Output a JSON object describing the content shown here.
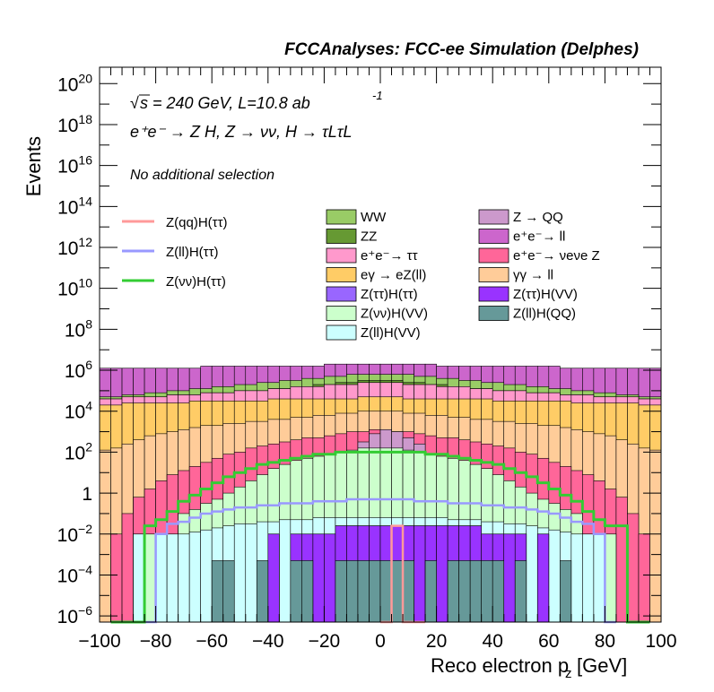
{
  "chart_data": {
    "type": "histogram-stack-log",
    "title": "FCCAnalyses: FCC-ee Simulation (Delphes)",
    "annotations": {
      "sqrt_s": "s = 240 GeV, L=10.8 ab",
      "lumi_exp": "-1",
      "process": "e⁺e⁻ → Z H, Z → νν, H → τLτL",
      "selection": "No additional selection"
    },
    "xlabel": "Reco electron p",
    "xlabel_sub": "z",
    "xlabel_unit": "[GeV]",
    "ylabel": "Events",
    "xlim": [
      -100,
      100
    ],
    "ylim_log10": [
      -6.3,
      20.8
    ],
    "x_ticks": [
      -100,
      -80,
      -60,
      -40,
      -20,
      0,
      20,
      40,
      60,
      80,
      100
    ],
    "y_ticks": [
      {
        "exp": -6,
        "label": "10-6"
      },
      {
        "exp": -4,
        "label": "10-4"
      },
      {
        "exp": -2,
        "label": "10-2"
      },
      {
        "exp": 0,
        "label": "1"
      },
      {
        "exp": 2,
        "label": "102"
      },
      {
        "exp": 4,
        "label": "104"
      },
      {
        "exp": 6,
        "label": "106"
      },
      {
        "exp": 8,
        "label": "108"
      },
      {
        "exp": 10,
        "label": "1010"
      },
      {
        "exp": 12,
        "label": "1012"
      },
      {
        "exp": 14,
        "label": "1014"
      },
      {
        "exp": 16,
        "label": "1016"
      },
      {
        "exp": 18,
        "label": "1018"
      },
      {
        "exp": 20,
        "label": "1020"
      }
    ],
    "colors": {
      "WW": "#99cc66",
      "ZZ": "#669933",
      "ee_tautau": "#ff99cc",
      "egamma": "#ffcc66",
      "ztautau_htautau": "#9966ff",
      "znunu_hvv": "#ccffcc",
      "zll_hvv": "#ccffff",
      "z_qq": "#cc99cc",
      "ee_ll": "#cc66cc",
      "ee_nunuz": "#ff6699",
      "gammagamma_ll": "#ffcc99",
      "ztautau_hvv": "#9933ff",
      "zll_hqq": "#669999",
      "sig_qq": "#ff9999",
      "sig_ll": "#9999ff",
      "sig_nunu": "#33cc33"
    },
    "legend_signal": [
      {
        "label": "Z(qq)H(ττ)",
        "color": "#ff9999"
      },
      {
        "label": "Z(ll)H(ττ)",
        "color": "#9999ff"
      },
      {
        "label": "Z(νν)H(ττ)",
        "color": "#33cc33"
      }
    ],
    "legend_bkg_col1": [
      {
        "label": "WW",
        "color": "#99cc66"
      },
      {
        "label": "ZZ",
        "color": "#669933"
      },
      {
        "label": "e⁺e⁻→ ττ",
        "color": "#ff99cc"
      },
      {
        "label": "eγ → eZ(ll)",
        "color": "#ffcc66"
      },
      {
        "label": "Z(ττ)H(ττ)",
        "color": "#9966ff"
      },
      {
        "label": "Z(νν)H(VV)",
        "color": "#ccffcc"
      },
      {
        "label": "Z(ll)H(VV)",
        "color": "#ccffff"
      }
    ],
    "legend_bkg_col2": [
      {
        "label": "Z → QQ",
        "color": "#cc99cc"
      },
      {
        "label": "e⁺e⁻→ ll",
        "color": "#cc66cc"
      },
      {
        "label": "e⁺e⁻→ νeνe Z",
        "color": "#ff6699"
      },
      {
        "label": "γγ → ll",
        "color": "#ffcc99"
      },
      {
        "label": "Z(ττ)H(VV)",
        "color": "#9933ff"
      },
      {
        "label": "Z(ll)H(QQ)",
        "color": "#669999"
      }
    ],
    "bin_width": 4,
    "stack_bands_note": "log10 of cumulative stacked height per 4 GeV bin, bins from -100 to 100",
    "bands_log10": {
      "zll_hqq": [
        -9,
        -9,
        -9,
        -9,
        -9,
        -9,
        -9,
        -9,
        -9,
        -9,
        -3.3,
        -3.3,
        -9,
        -9,
        -3.3,
        -9,
        -9,
        -3.3,
        -3.3,
        -9,
        -9,
        -3.3,
        -3.3,
        -3.3,
        -3.3,
        -3.3,
        -3.3,
        -3.3,
        -9,
        -3.3,
        -9,
        -3.3,
        -3.3,
        -3.3,
        -3.3,
        -3.3,
        -9,
        -3.3,
        -9,
        -9,
        -9,
        -3.3,
        -9,
        -9,
        -9,
        -9,
        -9,
        -9,
        -9,
        -9
      ],
      "ztautau_hvv": [
        -9,
        -9,
        -9,
        -9,
        -9,
        -9,
        -9,
        -9,
        -9,
        -9,
        -9,
        -9,
        -9,
        -9,
        -9,
        -2.0,
        -9,
        -2.0,
        -2.0,
        -2.0,
        -2.0,
        -1.6,
        -1.6,
        -1.6,
        -1.6,
        -1.6,
        -1.6,
        -1.6,
        -1.6,
        -1.6,
        -1.6,
        -1.6,
        -1.6,
        -1.6,
        -2.0,
        -2.0,
        -2.0,
        -2.0,
        -9,
        -2.0,
        -9,
        -9,
        -9,
        -9,
        -9,
        -9,
        -9,
        -9,
        -9,
        -9
      ],
      "ztautau_htautau": [
        -9,
        -9,
        -9,
        -9,
        -9,
        -9,
        -9,
        -9,
        -9,
        -9,
        -9,
        -9,
        -9,
        -9,
        -9,
        -2.0,
        -9,
        -2.0,
        -2.0,
        -2.0,
        -2.0,
        -1.6,
        -1.6,
        -1.6,
        -1.6,
        -1.6,
        -1.6,
        -1.6,
        -1.6,
        -1.6,
        -1.6,
        -1.6,
        -1.6,
        -1.6,
        -2.0,
        -2.0,
        -2.0,
        -2.0,
        -9,
        -2.0,
        -9,
        -9,
        -9,
        -9,
        -9,
        -9,
        -9,
        -9,
        -9,
        -9
      ],
      "zll_hvv": [
        -9,
        -9,
        -9,
        -2.0,
        -9,
        -2.0,
        -2.0,
        -2.0,
        -1.9,
        -1.8,
        -1.7,
        -1.6,
        -1.5,
        -1.5,
        -1.4,
        -1.4,
        -1.3,
        -1.3,
        -1.3,
        -1.2,
        -1.2,
        -1.2,
        -1.2,
        -1.2,
        -1.2,
        -1.2,
        -1.2,
        -1.2,
        -1.2,
        -1.2,
        -1.2,
        -1.3,
        -1.3,
        -1.3,
        -1.4,
        -1.4,
        -1.5,
        -1.5,
        -1.6,
        -1.7,
        -1.8,
        -1.9,
        -2.0,
        -2.0,
        -2.0,
        -9,
        -9,
        -9,
        -9,
        -9
      ],
      "znunu_hvv": [
        -9,
        -9,
        -9,
        -2.0,
        -2.0,
        -2.0,
        -2.0,
        -1.0,
        -0.8,
        -0.5,
        -0.3,
        0.0,
        0.3,
        0.6,
        0.9,
        1.2,
        1.4,
        1.6,
        1.7,
        1.8,
        1.9,
        2.0,
        2.1,
        2.2,
        2.2,
        2.2,
        2.2,
        2.1,
        2.0,
        1.9,
        1.8,
        1.7,
        1.6,
        1.4,
        1.2,
        0.9,
        0.6,
        0.3,
        0.0,
        -0.3,
        -0.5,
        -0.8,
        -1.0,
        -2.0,
        -2.0,
        -2.0,
        -9,
        -9,
        -9,
        -9
      ],
      "z_qq": [
        -9,
        -9,
        -9,
        -9,
        -9,
        -9,
        -9,
        -9,
        -9,
        -9,
        -9,
        -9,
        -9,
        -9,
        -9,
        -9,
        -9,
        -9,
        -9,
        -9,
        -9,
        -9,
        -9,
        2.5,
        2.9,
        3.1,
        3.0,
        2.7,
        2.4,
        -9,
        -9,
        -9,
        -9,
        -9,
        -9,
        -9,
        -9,
        -9,
        -9,
        -9,
        -9,
        -9,
        -9,
        -9,
        -9,
        -9,
        -9,
        -9,
        -9,
        -9
      ],
      "ee_nunuz": [
        -6.3,
        -2.0,
        -1.0,
        -0.2,
        0.2,
        0.6,
        0.9,
        1.1,
        1.3,
        1.5,
        1.7,
        1.9,
        2.0,
        2.2,
        2.3,
        2.4,
        2.5,
        2.6,
        2.7,
        2.7,
        2.8,
        2.9,
        3.0,
        3.0,
        3.1,
        3.1,
        3.0,
        3.0,
        2.9,
        2.8,
        2.7,
        2.7,
        2.6,
        2.5,
        2.4,
        2.3,
        2.2,
        2.0,
        1.9,
        1.7,
        1.5,
        1.3,
        1.1,
        0.9,
        0.6,
        0.2,
        -0.2,
        -1.0,
        -2.0,
        -6.3
      ],
      "gammagamma_ll": [
        2.1,
        2.2,
        2.4,
        2.6,
        2.8,
        2.9,
        3.0,
        3.1,
        3.2,
        3.3,
        3.3,
        3.4,
        3.4,
        3.5,
        3.5,
        3.6,
        3.6,
        3.7,
        3.7,
        3.8,
        3.8,
        3.9,
        3.9,
        4.0,
        4.0,
        4.0,
        4.0,
        3.9,
        3.9,
        3.8,
        3.8,
        3.7,
        3.7,
        3.6,
        3.6,
        3.5,
        3.5,
        3.4,
        3.4,
        3.3,
        3.3,
        3.2,
        3.1,
        3.0,
        2.9,
        2.8,
        2.6,
        2.4,
        2.2,
        2.1
      ],
      "egamma": [
        4.3,
        4.3,
        4.4,
        4.4,
        4.4,
        4.4,
        4.4,
        4.4,
        4.5,
        4.5,
        4.5,
        4.5,
        4.5,
        4.5,
        4.5,
        4.6,
        4.6,
        4.6,
        4.6,
        4.6,
        4.6,
        4.6,
        4.6,
        4.7,
        4.7,
        4.7,
        4.7,
        4.6,
        4.6,
        4.6,
        4.6,
        4.6,
        4.6,
        4.6,
        4.6,
        4.5,
        4.5,
        4.5,
        4.5,
        4.5,
        4.5,
        4.5,
        4.4,
        4.4,
        4.4,
        4.4,
        4.4,
        4.4,
        4.3,
        4.3
      ],
      "ee_tautau": [
        4.6,
        4.6,
        4.7,
        4.7,
        4.7,
        4.7,
        4.8,
        4.8,
        4.8,
        4.9,
        4.9,
        4.9,
        5.0,
        5.0,
        5.0,
        5.1,
        5.1,
        5.2,
        5.2,
        5.2,
        5.3,
        5.3,
        5.3,
        5.4,
        5.4,
        5.4,
        5.4,
        5.3,
        5.3,
        5.3,
        5.2,
        5.2,
        5.2,
        5.1,
        5.1,
        5.0,
        5.0,
        5.0,
        4.9,
        4.9,
        4.9,
        4.8,
        4.8,
        4.8,
        4.7,
        4.7,
        4.7,
        4.7,
        4.6,
        4.6
      ],
      "ZZ": [
        4.6,
        4.6,
        4.7,
        4.7,
        4.7,
        4.7,
        4.8,
        4.8,
        4.8,
        4.9,
        4.9,
        4.9,
        5.0,
        5.0,
        5.0,
        5.1,
        5.1,
        5.2,
        5.2,
        5.3,
        5.3,
        5.4,
        5.4,
        5.5,
        5.5,
        5.5,
        5.5,
        5.4,
        5.4,
        5.3,
        5.3,
        5.2,
        5.2,
        5.1,
        5.1,
        5.0,
        5.0,
        5.0,
        4.9,
        4.9,
        4.9,
        4.8,
        4.8,
        4.8,
        4.7,
        4.7,
        4.7,
        4.7,
        4.6,
        4.6
      ],
      "WW": [
        4.7,
        4.7,
        4.8,
        4.8,
        4.9,
        4.9,
        5.0,
        5.0,
        5.1,
        5.1,
        5.2,
        5.2,
        5.3,
        5.3,
        5.4,
        5.4,
        5.5,
        5.5,
        5.6,
        5.6,
        5.7,
        5.7,
        5.8,
        5.8,
        5.8,
        5.8,
        5.8,
        5.8,
        5.7,
        5.7,
        5.6,
        5.6,
        5.5,
        5.5,
        5.4,
        5.4,
        5.3,
        5.3,
        5.2,
        5.2,
        5.1,
        5.1,
        5.0,
        5.0,
        4.9,
        4.9,
        4.8,
        4.8,
        4.7,
        4.7
      ],
      "ee_ll": [
        6.1,
        6.1,
        6.1,
        6.1,
        6.1,
        6.1,
        6.1,
        6.1,
        6.1,
        6.2,
        6.2,
        6.2,
        6.2,
        6.2,
        6.2,
        6.2,
        6.2,
        6.2,
        6.2,
        6.2,
        6.3,
        6.3,
        6.3,
        6.3,
        6.3,
        6.3,
        6.3,
        6.3,
        6.3,
        6.3,
        6.2,
        6.2,
        6.2,
        6.2,
        6.2,
        6.2,
        6.2,
        6.2,
        6.2,
        6.2,
        6.2,
        6.1,
        6.1,
        6.1,
        6.1,
        6.1,
        6.1,
        6.1,
        6.1,
        6.1
      ]
    },
    "signal_lines": {
      "sig_qq": {
        "x": [
          0,
          4,
          8,
          12
        ],
        "log10": [
          -6.3,
          -1.6,
          -6.3,
          -6.3
        ]
      },
      "sig_ll": {
        "x": [
          -84,
          -80,
          -76,
          -72,
          -68,
          -64,
          -60,
          -56,
          -52,
          -48,
          -44,
          -40,
          -36,
          -32,
          -28,
          -24,
          -20,
          -16,
          -12,
          -8,
          -4,
          0,
          4,
          8,
          12,
          16,
          20,
          24,
          28,
          32,
          36,
          40,
          44,
          48,
          52,
          56,
          60,
          64,
          68,
          72,
          76,
          80
        ],
        "log10": [
          -6.3,
          -2.0,
          -1.5,
          -1.4,
          -1.2,
          -1.0,
          -0.9,
          -0.8,
          -0.7,
          -0.7,
          -0.6,
          -0.6,
          -0.5,
          -0.5,
          -0.5,
          -0.4,
          -0.4,
          -0.4,
          -0.3,
          -0.3,
          -0.3,
          -0.3,
          -0.3,
          -0.3,
          -0.4,
          -0.4,
          -0.4,
          -0.5,
          -0.5,
          -0.5,
          -0.6,
          -0.6,
          -0.7,
          -0.7,
          -0.8,
          -0.9,
          -1.0,
          -1.2,
          -1.4,
          -1.5,
          -2.0,
          -6.3
        ]
      },
      "sig_nunu": {
        "x": [
          -96,
          -92,
          -88,
          -84,
          -80,
          -76,
          -72,
          -68,
          -64,
          -60,
          -56,
          -52,
          -48,
          -44,
          -40,
          -36,
          -32,
          -28,
          -24,
          -20,
          -16,
          -12,
          -8,
          -4,
          0,
          4,
          8,
          12,
          16,
          20,
          24,
          28,
          32,
          36,
          40,
          44,
          48,
          52,
          56,
          60,
          64,
          68,
          72,
          76,
          80,
          84,
          88,
          92
        ],
        "log10": [
          -6.3,
          -6.3,
          -6.3,
          -1.6,
          -1.3,
          -0.9,
          -0.4,
          -0.1,
          0.2,
          0.5,
          0.8,
          1.0,
          1.2,
          1.4,
          1.5,
          1.6,
          1.7,
          1.8,
          1.9,
          1.9,
          2.0,
          2.0,
          2.0,
          2.0,
          2.0,
          2.0,
          2.0,
          2.0,
          1.9,
          1.9,
          1.8,
          1.7,
          1.6,
          1.5,
          1.4,
          1.2,
          1.0,
          0.8,
          0.5,
          0.2,
          -0.1,
          -0.4,
          -0.9,
          -1.3,
          -1.6,
          -1.6,
          -6.3,
          -6.3
        ]
      }
    }
  }
}
